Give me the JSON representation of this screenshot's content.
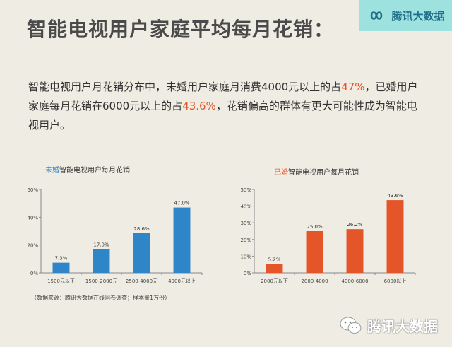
{
  "header": {
    "title": "智能电视用户家庭平均每月花销：",
    "logo_text": "腾讯大数据"
  },
  "description": {
    "part1": "智能电视用户月花销分布中，未婚用户家庭月消费4000元以上的占",
    "hl1": "47%",
    "part2": "，已婚用户家庭每月花销在6000元以上的占",
    "hl2": "43.6%",
    "part3": "，花销偏高的群体有更大可能性成为智能电视用户。"
  },
  "colors": {
    "unmarried": "#2e86c9",
    "married": "#e5552a",
    "accent": "#e5552a"
  },
  "source_note": "（数据来源：腾讯大数据在线问卷调查；样本量1万份）",
  "watermark": {
    "text": "腾讯大数据",
    "icon": "wechat-icon"
  },
  "chart_data": [
    {
      "type": "bar",
      "title_prefix": "未婚",
      "title_rest": "智能电视用户每月花销",
      "categories": [
        "1500元以下",
        "1500-2000元",
        "2500-4000元",
        "4000元以上"
      ],
      "values": [
        7.3,
        17.0,
        28.6,
        47.0
      ],
      "value_labels": [
        "7.3%",
        "17.0%",
        "28.6%",
        "47.0%"
      ],
      "ylim": [
        0,
        60
      ],
      "yticks": [
        0,
        20,
        40,
        60
      ],
      "ytick_labels": [
        "0%",
        "20%",
        "40%",
        "60%"
      ],
      "color": "#2e86c9",
      "grid": false
    },
    {
      "type": "bar",
      "title_prefix": "已婚",
      "title_rest": "智能电视用户每月花销",
      "categories": [
        "2000元以下",
        "2000-4000",
        "4000-6000",
        "6000以上"
      ],
      "values": [
        5.2,
        25.0,
        26.2,
        43.6
      ],
      "value_labels": [
        "5.2%",
        "25.0%",
        "26.2%",
        "43.6%"
      ],
      "ylim": [
        0,
        50
      ],
      "yticks": [
        0,
        10,
        20,
        30,
        40,
        50
      ],
      "ytick_labels": [
        "0%",
        "10%",
        "20%",
        "30%",
        "40%",
        "50%"
      ],
      "color": "#e5552a",
      "grid": false
    }
  ]
}
